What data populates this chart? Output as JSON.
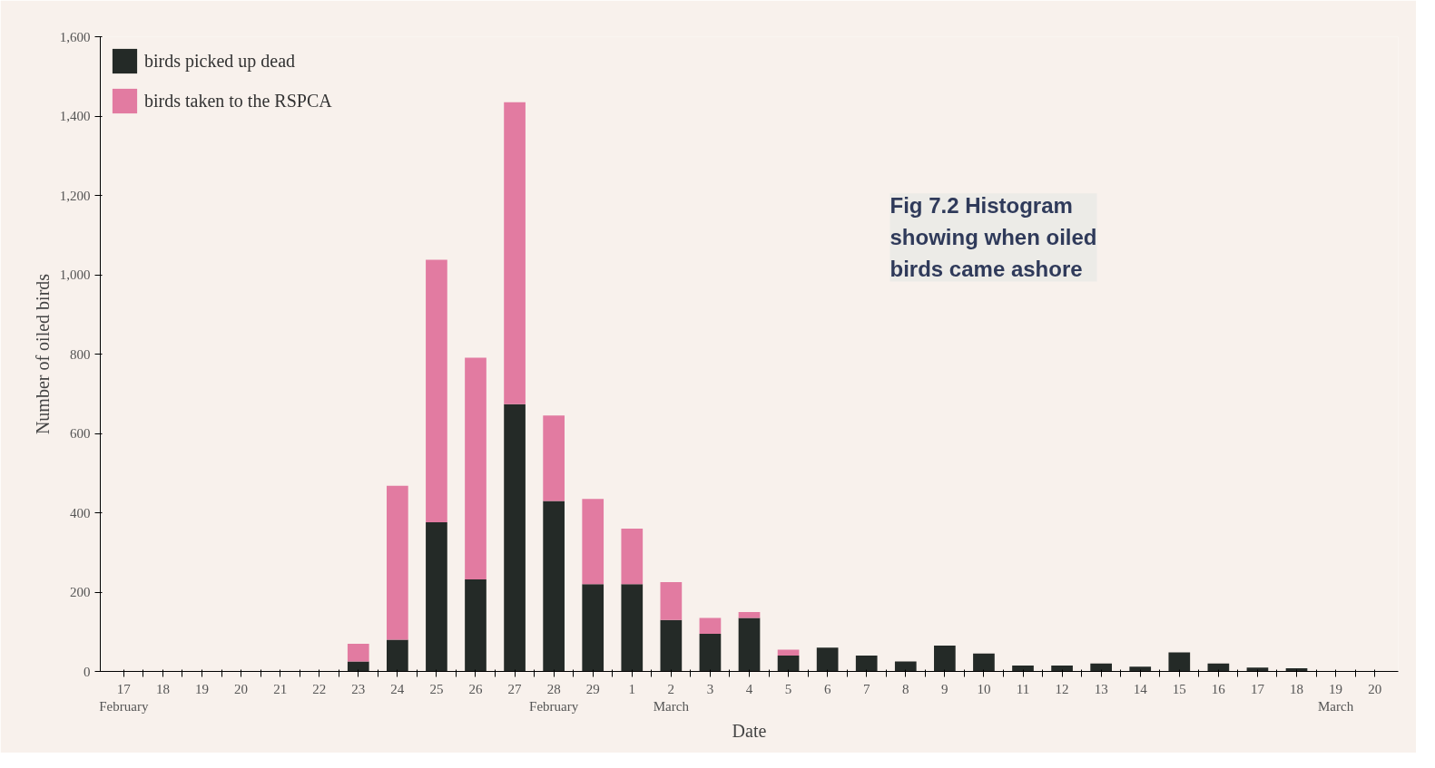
{
  "chart_data": {
    "type": "bar",
    "stacked": true,
    "title": "Fig 7.2 Histogram showing when oiled birds came ashore",
    "xlabel": "Date",
    "ylabel": "Number of oiled birds",
    "categories": [
      "17\nFebruary",
      "18",
      "19",
      "20",
      "21",
      "22",
      "23",
      "24",
      "25",
      "26",
      "27",
      "28\nFebruary",
      "29",
      "1",
      "2\nMarch",
      "3",
      "4",
      "5",
      "6",
      "7",
      "8",
      "9",
      "10",
      "11",
      "12",
      "13",
      "14",
      "15",
      "16",
      "17",
      "18",
      "19\nMarch",
      "20"
    ],
    "series": [
      {
        "name": "birds picked up dead",
        "color": "#242a27",
        "values": [
          null,
          0,
          null,
          null,
          0,
          0,
          25,
          80,
          376,
          232,
          674,
          430,
          220,
          220,
          130,
          95,
          135,
          40,
          60,
          40,
          25,
          65,
          45,
          15,
          15,
          20,
          12,
          48,
          20,
          10,
          8,
          0,
          0
        ]
      },
      {
        "name": "birds taken to the RSPCA",
        "color": "#e27ba1",
        "values": [
          0,
          0,
          0,
          0,
          0,
          0,
          45,
          388,
          662,
          559,
          761,
          215,
          215,
          140,
          95,
          40,
          15,
          15,
          0,
          0,
          0,
          0,
          0,
          0,
          0,
          0,
          0,
          0,
          0,
          0,
          0,
          0,
          0
        ]
      }
    ],
    "ylim": [
      0,
      1600
    ],
    "yticks": [
      0,
      200,
      400,
      600,
      800,
      {
        "value": 1000,
        "label": "1,000"
      },
      {
        "value": 1200,
        "label": "1,200"
      },
      {
        "value": 1400,
        "label": "1,400"
      },
      {
        "value": 1600,
        "label": "1,600"
      }
    ],
    "grid": false,
    "legend": "top left"
  }
}
